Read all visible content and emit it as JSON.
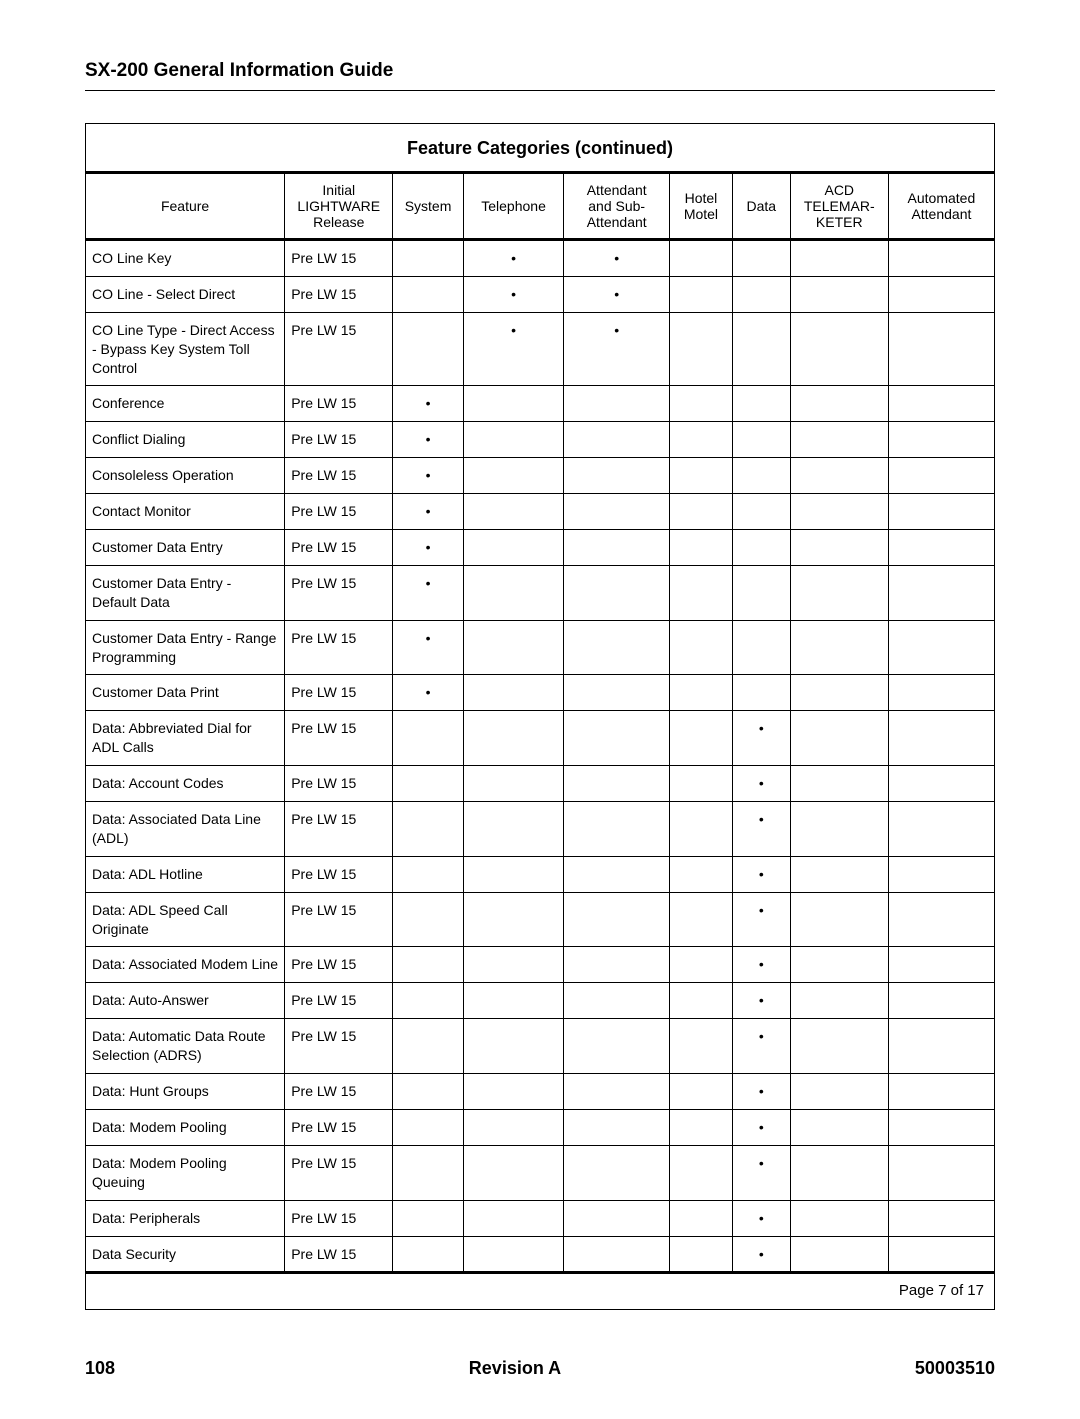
{
  "document_title": "SX-200 General Information Guide",
  "table_title": "Feature Categories (continued)",
  "dot_glyph": "•",
  "columns": [
    {
      "key": "feature",
      "header": "Feature"
    },
    {
      "key": "release",
      "header": "Initial\nLIGHTWARE\nRelease"
    },
    {
      "key": "system",
      "header": "System"
    },
    {
      "key": "telephone",
      "header": "Telephone"
    },
    {
      "key": "attendant",
      "header": "Attendant\nand Sub-\nAttendant"
    },
    {
      "key": "hotel",
      "header": "Hotel\nMotel"
    },
    {
      "key": "data",
      "header": "Data"
    },
    {
      "key": "acd",
      "header": "ACD\nTELEMAR-\nKETER"
    },
    {
      "key": "auto",
      "header": "Automated\nAttendant"
    }
  ],
  "rows": [
    {
      "feature": "CO Line Key",
      "release": "Pre LW 15",
      "telephone": true,
      "attendant": true
    },
    {
      "feature": "CO Line - Select Direct",
      "release": "Pre LW 15",
      "telephone": true,
      "attendant": true
    },
    {
      "feature": "CO Line Type - Direct Access - Bypass Key System Toll Control",
      "release": "Pre LW 15",
      "telephone": true,
      "attendant": true
    },
    {
      "feature": "Conference",
      "release": "Pre LW 15",
      "system": true
    },
    {
      "feature": "Conflict Dialing",
      "release": "Pre LW 15",
      "system": true
    },
    {
      "feature": "Consoleless Operation",
      "release": "Pre LW 15",
      "system": true
    },
    {
      "feature": "Contact Monitor",
      "release": "Pre LW 15",
      "system": true
    },
    {
      "feature": "Customer Data Entry",
      "release": "Pre LW 15",
      "system": true
    },
    {
      "feature": "Customer Data Entry - Default Data",
      "release": "Pre LW 15",
      "system": true
    },
    {
      "feature": "Customer Data Entry - Range Programming",
      "release": "Pre LW 15",
      "system": true
    },
    {
      "feature": "Customer Data Print",
      "release": "Pre LW 15",
      "system": true
    },
    {
      "feature": "Data: Abbreviated Dial for ADL Calls",
      "release": "Pre LW 15",
      "data": true
    },
    {
      "feature": "Data: Account Codes",
      "release": "Pre LW 15",
      "data": true
    },
    {
      "feature": "Data: Associated Data Line (ADL)",
      "release": "Pre LW 15",
      "data": true
    },
    {
      "feature": "Data: ADL Hotline",
      "release": "Pre LW 15",
      "data": true
    },
    {
      "feature": "Data: ADL Speed Call Originate",
      "release": "Pre LW 15",
      "data": true
    },
    {
      "feature": "Data: Associated Modem Line",
      "release": "Pre LW 15",
      "data": true
    },
    {
      "feature": "Data: Auto-Answer",
      "release": "Pre LW 15",
      "data": true
    },
    {
      "feature": "Data: Automatic Data Route Selection (ADRS)",
      "release": "Pre LW 15",
      "data": true
    },
    {
      "feature": "Data: Hunt Groups",
      "release": "Pre LW 15",
      "data": true
    },
    {
      "feature": "Data: Modem Pooling",
      "release": "Pre LW 15",
      "data": true
    },
    {
      "feature": "Data: Modem Pooling Queuing",
      "release": "Pre LW 15",
      "data": true
    },
    {
      "feature": "Data: Peripherals",
      "release": "Pre LW 15",
      "data": true
    },
    {
      "feature": "Data Security",
      "release": "Pre LW 15",
      "data": true
    }
  ],
  "table_page_label": "Page 7 of 17",
  "footer": {
    "page_number": "108",
    "revision": "Revision A",
    "doc_number": "50003510"
  }
}
